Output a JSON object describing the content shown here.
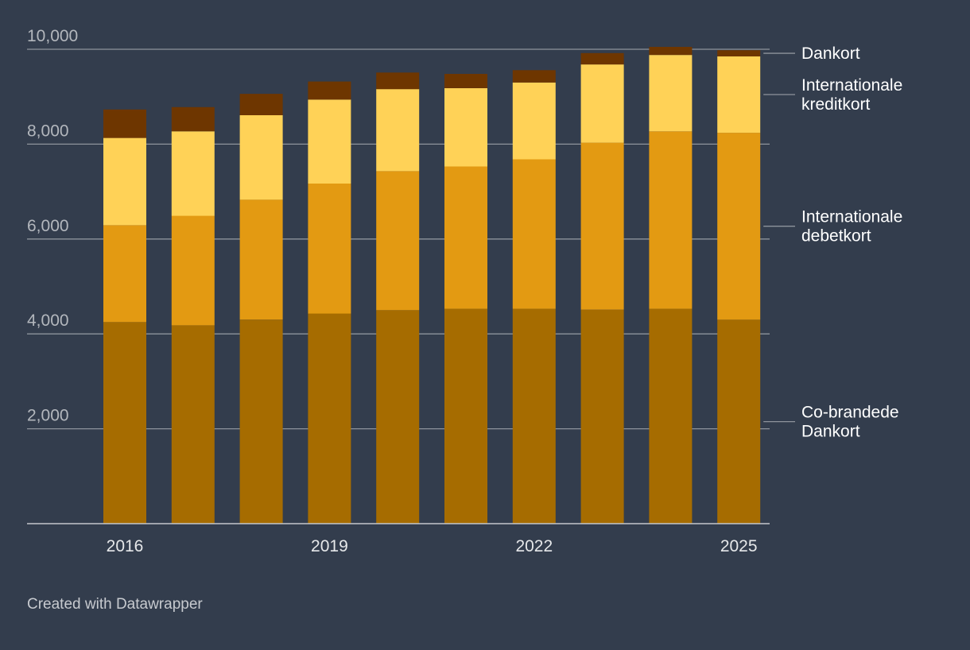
{
  "chart_data": {
    "type": "bar",
    "stacked": true,
    "categories": [
      "2016",
      "2017",
      "2018",
      "2019",
      "2020",
      "2021",
      "2022",
      "2023",
      "2024",
      "2025"
    ],
    "x_tick_labels": [
      "2016",
      "2019",
      "2022",
      "2025"
    ],
    "series": [
      {
        "name": "Co-brandede Dankort",
        "label_lines": [
          "Co-brandede",
          "Dankort"
        ],
        "color": "#a66c00",
        "values": [
          4250,
          4180,
          4300,
          4430,
          4500,
          4530,
          4530,
          4510,
          4530,
          4300
        ]
      },
      {
        "name": "Internationale debetkort",
        "label_lines": [
          "Internationale",
          "debetkort"
        ],
        "color": "#e39a12",
        "values": [
          2040,
          2310,
          2530,
          2740,
          2930,
          3000,
          3150,
          3520,
          3740,
          3940
        ]
      },
      {
        "name": "Internationale kreditkort",
        "label_lines": [
          "Internationale",
          "kreditkort"
        ],
        "color": "#ffd257",
        "values": [
          1840,
          1780,
          1780,
          1770,
          1730,
          1650,
          1620,
          1650,
          1610,
          1610
        ]
      },
      {
        "name": "Dankort",
        "label_lines": [
          "Dankort"
        ],
        "color": "#6e3600",
        "values": [
          600,
          510,
          450,
          380,
          350,
          300,
          260,
          240,
          170,
          130
        ]
      }
    ],
    "y_ticks": [
      "2,000",
      "4,000",
      "6,000",
      "8,000",
      "10,000"
    ],
    "ylim": [
      0,
      10000
    ],
    "title": "",
    "xlabel": "",
    "ylabel": "",
    "grid": true,
    "legend": "right, labels aligned to last bar"
  },
  "footer": {
    "credit": "Created with Datawrapper"
  },
  "colors": {
    "background": "#333d4d",
    "grid": "#8e949c",
    "axis": "#c4c7cc"
  }
}
